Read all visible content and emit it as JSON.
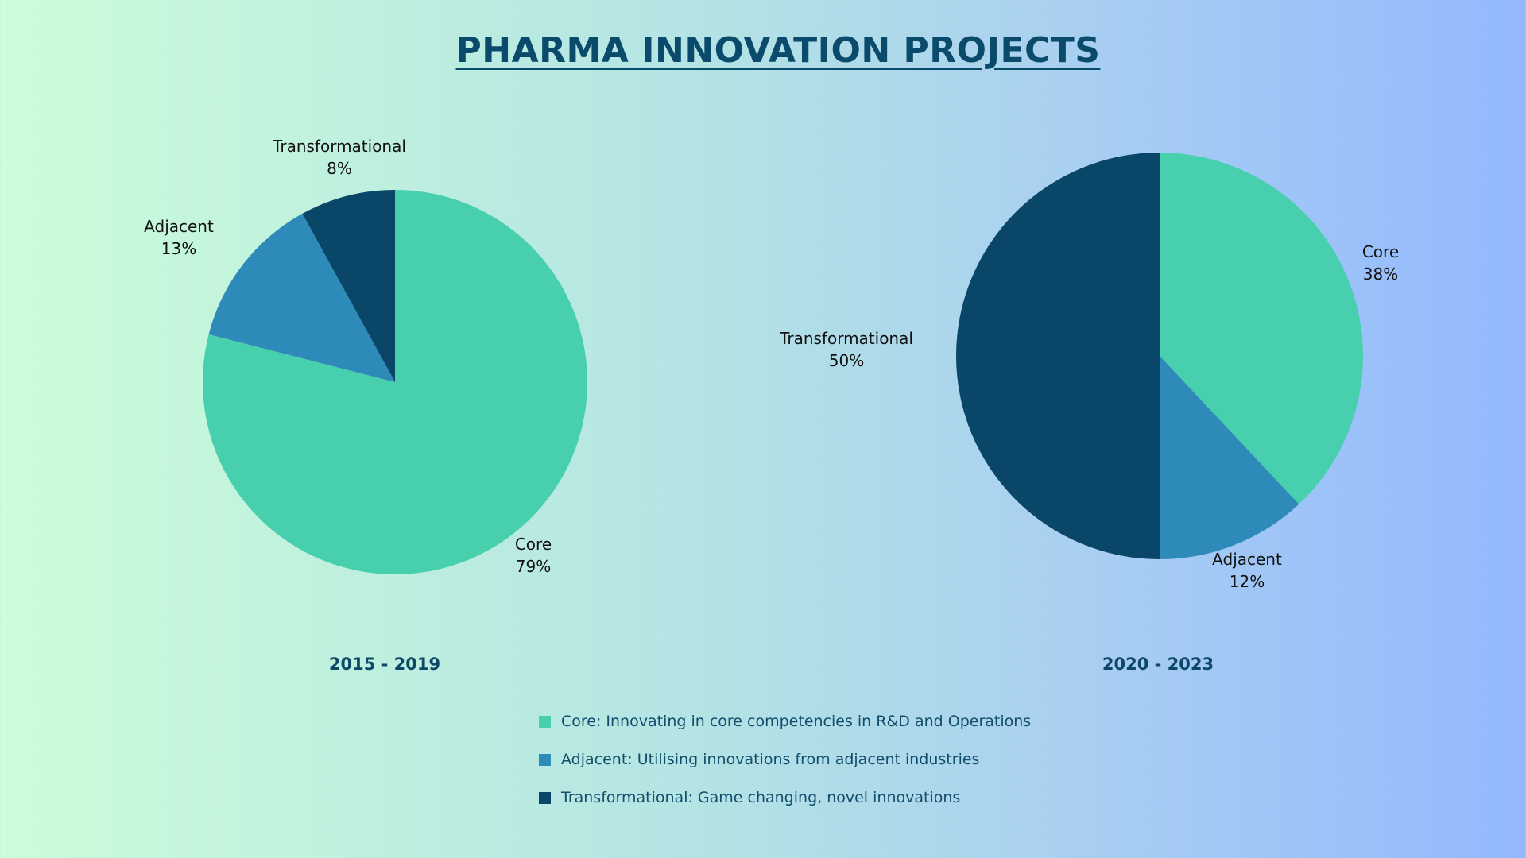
{
  "title": "PHARMA INNOVATION PROJECTS",
  "colors": {
    "core": "#48cfad",
    "adjacent": "#2d8ab9",
    "transformational": "#0a4667",
    "title": "#0a4a6b"
  },
  "chart_data": [
    {
      "type": "pie",
      "title": "2015 - 2019",
      "start": "12 o'clock, clockwise",
      "slices": [
        {
          "label": "Core",
          "value": 79,
          "display": "79%",
          "color": "#48cfad"
        },
        {
          "label": "Adjacent",
          "value": 13,
          "display": "13%",
          "color": "#2d8ab9"
        },
        {
          "label": "Transformational",
          "value": 8,
          "display": "8%",
          "color": "#0a4667"
        }
      ]
    },
    {
      "type": "pie",
      "title": "2020 - 2023",
      "start": "12 o'clock, clockwise",
      "slices": [
        {
          "label": "Core",
          "value": 38,
          "display": "38%",
          "color": "#48cfad"
        },
        {
          "label": "Adjacent",
          "value": 12,
          "display": "12%",
          "color": "#2d8ab9"
        },
        {
          "label": "Transformational",
          "value": 50,
          "display": "50%",
          "color": "#0a4667"
        }
      ]
    }
  ],
  "legend": [
    {
      "key": "core",
      "text": "Core: Innovating in core competencies in R&D and Operations",
      "color": "#48cfad"
    },
    {
      "key": "adjacent",
      "text": "Adjacent: Utilising innovations from adjacent industries",
      "color": "#2d8ab9"
    },
    {
      "key": "transformational",
      "text": "Transformational: Game changing, novel innovations",
      "color": "#0a4667"
    }
  ]
}
